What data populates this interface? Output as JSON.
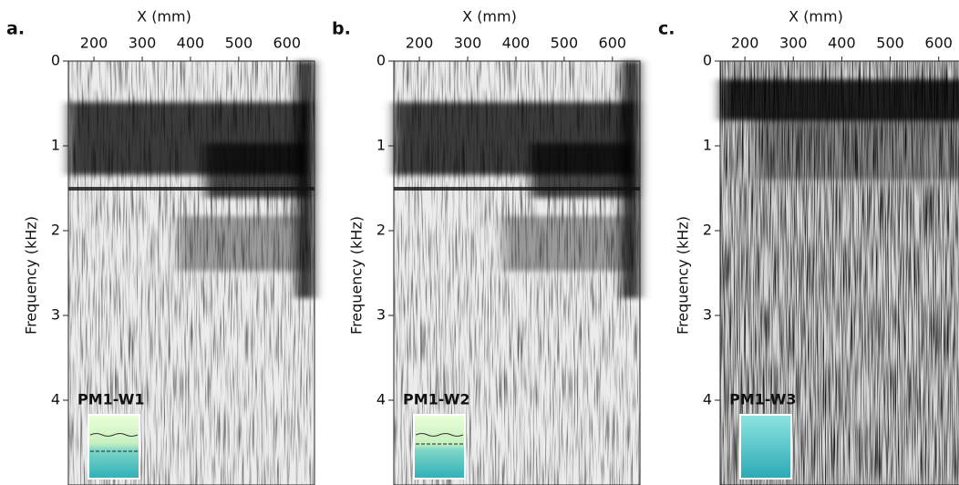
{
  "chart_data": [
    {
      "type": "heatmap",
      "panel_label": "a.",
      "xlabel": "X (mm)",
      "ylabel": "Frequency (kHz)",
      "label": "PM1-W1",
      "xlim": [
        147,
        657
      ],
      "ylim": [
        0,
        5
      ],
      "xticks": [
        200,
        300,
        400,
        500,
        600
      ],
      "yticks": [
        0,
        1,
        2,
        3,
        4
      ],
      "y_inverted": true
    },
    {
      "type": "heatmap",
      "panel_label": "b.",
      "xlabel": "X (mm)",
      "ylabel": "Frequency (kHz)",
      "label": "PM1-W2",
      "xlim": [
        147,
        657
      ],
      "ylim": [
        0,
        5
      ],
      "xticks": [
        200,
        300,
        400,
        500,
        600
      ],
      "yticks": [
        0,
        1,
        2,
        3,
        4
      ],
      "y_inverted": true
    },
    {
      "type": "heatmap",
      "panel_label": "c.",
      "xlabel": "X (mm)",
      "ylabel": "Frequency (kHz)",
      "label": "PM1-W3",
      "xlim": [
        149,
        657
      ],
      "ylim": [
        0,
        5
      ],
      "xticks": [
        200,
        300,
        400,
        500,
        600
      ],
      "yticks": [
        0,
        1,
        2,
        3,
        4
      ],
      "y_inverted": true
    }
  ]
}
